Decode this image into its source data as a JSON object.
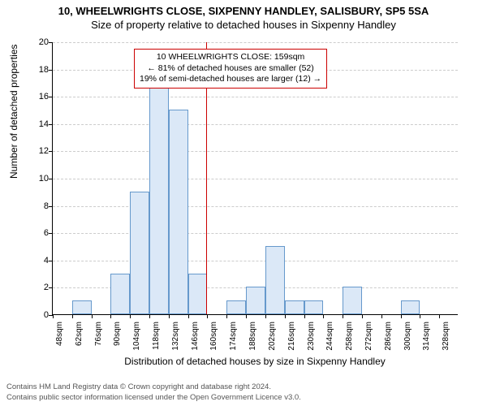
{
  "titles": {
    "line1": "10, WHEELWRIGHTS CLOSE, SIXPENNY HANDLEY, SALISBURY, SP5 5SA",
    "line2": "Size of property relative to detached houses in Sixpenny Handley"
  },
  "axes": {
    "ylabel": "Number of detached properties",
    "xlabel": "Distribution of detached houses by size in Sixpenny Handley",
    "ylim": [
      0,
      20
    ],
    "ytick_step": 2,
    "label_fontsize": 12,
    "tick_fontsize": 11
  },
  "chart": {
    "type": "histogram",
    "x_start": 48,
    "x_step": 14,
    "x_count": 21,
    "bar_color": "#dbe8f7",
    "bar_border": "#6699cc",
    "grid_color": "#cccccc",
    "values": [
      0,
      1,
      0,
      3,
      9,
      17,
      15,
      3,
      0,
      1,
      2,
      5,
      1,
      1,
      0,
      2,
      0,
      0,
      1,
      0,
      0
    ],
    "reference_line": {
      "x_value": 159,
      "color": "#cc0000"
    }
  },
  "annotation": {
    "line1": "10 WHEELWRIGHTS CLOSE: 159sqm",
    "line2": "← 81% of detached houses are smaller (52)",
    "line3": "19% of semi-detached houses are larger (12) →",
    "border_color": "#cc0000",
    "fontsize": 10.5
  },
  "footer": {
    "line1": "Contains HM Land Registry data © Crown copyright and database right 2024.",
    "line2": "Contains public sector information licensed under the Open Government Licence v3.0."
  }
}
